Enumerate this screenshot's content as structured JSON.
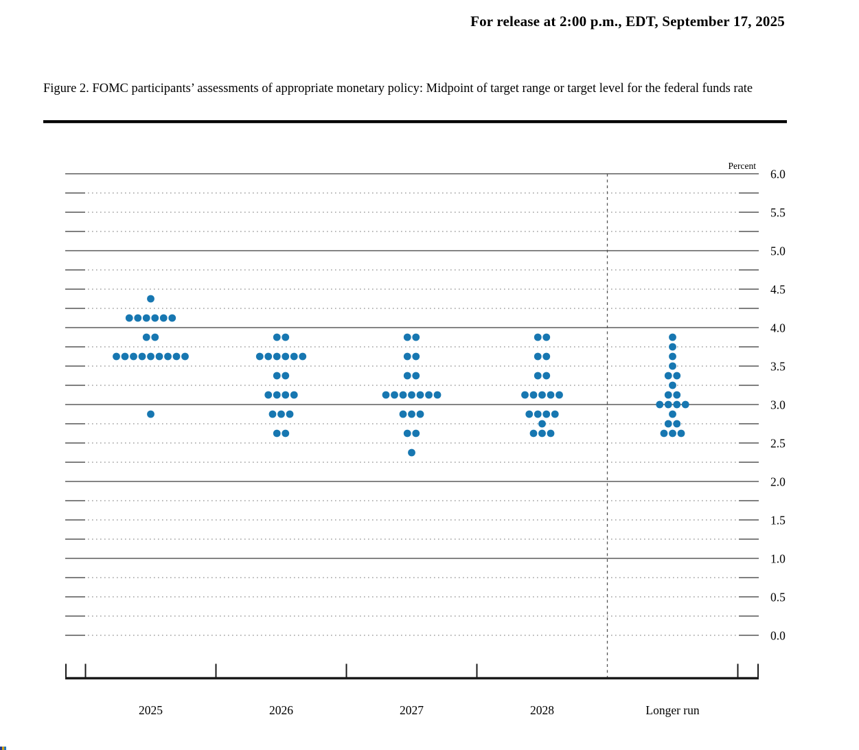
{
  "header": {
    "release_line": "For release at 2:00 p.m., EDT, September 17, 2025"
  },
  "figure": {
    "title": "Figure 2. FOMC participants’ assessments of appropriate monetary policy: Midpoint of target range or target level for the federal funds rate"
  },
  "chart_data": {
    "type": "scatter",
    "subtype": "fomc-dot-plot",
    "title": "FOMC participants’ assessments of appropriate monetary policy: Midpoint of target range or target level for the federal funds rate",
    "ylabel": "Percent",
    "ylim": [
      0.0,
      6.0
    ],
    "gridline_interval": 0.25,
    "solid_gridlines_at": [
      1.0,
      2.0,
      3.0,
      4.0,
      5.0,
      6.0
    ],
    "legend_position": "none",
    "grid": true,
    "ytick_labels": [
      "6.0",
      "5.5",
      "5.0",
      "4.5",
      "4.0",
      "3.5",
      "3.0",
      "2.5",
      "2.0",
      "1.5",
      "1.0",
      "0.5",
      "0.0"
    ],
    "categories": [
      "2025",
      "2026",
      "2027",
      "2028",
      "Longer run"
    ],
    "dot_color": "#1777B1",
    "columns": [
      {
        "label": "2025",
        "dots": {
          "4.375": 1,
          "4.125": 6,
          "3.875": 2,
          "3.625": 9,
          "2.875": 1
        }
      },
      {
        "label": "2026",
        "dots": {
          "3.875": 2,
          "3.625": 6,
          "3.375": 2,
          "3.125": 4,
          "2.875": 3,
          "2.625": 2
        }
      },
      {
        "label": "2027",
        "dots": {
          "3.875": 2,
          "3.625": 2,
          "3.375": 2,
          "3.125": 7,
          "2.875": 3,
          "2.625": 2,
          "2.375": 1
        }
      },
      {
        "label": "2028",
        "dots": {
          "3.875": 2,
          "3.625": 2,
          "3.375": 2,
          "3.125": 5,
          "2.875": 4,
          "2.75": 1,
          "2.625": 3
        }
      },
      {
        "label": "Longer run",
        "dots": {
          "3.875": 1,
          "3.75": 1,
          "3.625": 1,
          "3.5": 1,
          "3.375": 2,
          "3.25": 1,
          "3.125": 2,
          "3.0": 4,
          "2.875": 1,
          "2.75": 2,
          "2.625": 3
        }
      }
    ],
    "annotations": [
      "Dashed vertical line separates 2028 projections from the longer run"
    ]
  }
}
